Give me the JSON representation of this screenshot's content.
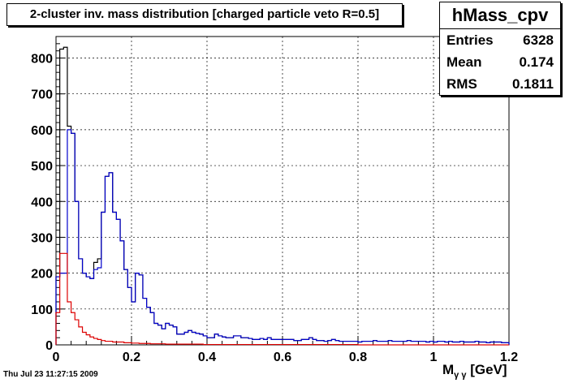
{
  "chart_data": {
    "type": "histogram",
    "title": "2-cluster inv. mass distribution [charged particle veto R=0.5]",
    "xlabel_main": "M",
    "xlabel_sub": "γ γ",
    "xlabel_unit": "[GeV]",
    "xlim": [
      0,
      1.2
    ],
    "ylim": [
      0,
      860
    ],
    "xticks": [
      0,
      0.2,
      0.4,
      0.6,
      0.8,
      1,
      1.2
    ],
    "yticks": [
      0,
      100,
      200,
      300,
      400,
      500,
      600,
      700,
      800
    ],
    "grid": true,
    "bin_width": 0.01,
    "stats": {
      "name": "hMass_cpv",
      "entries_label": "Entries",
      "entries": "6328",
      "mean_label": "Mean",
      "mean": "0.174",
      "rms_label": "RMS",
      "rms": "0.1811"
    },
    "series": [
      {
        "color": "#000000",
        "values": [
          190,
          825,
          830,
          610,
          590,
          400,
          240,
          200,
          190,
          185,
          230,
          240,
          370,
          470,
          480,
          370,
          350,
          290,
          210,
          160,
          120,
          200,
          195,
          130,
          105,
          90,
          60,
          55,
          45,
          60,
          55,
          50,
          30,
          30,
          35,
          40,
          35,
          32,
          30,
          25,
          20,
          20,
          30,
          25,
          22,
          20,
          20,
          25,
          25,
          20,
          20,
          18,
          15,
          15,
          18,
          15,
          20,
          15,
          15,
          15,
          15,
          15,
          15,
          12,
          12,
          15,
          15,
          20,
          15,
          12,
          12,
          10,
          12,
          15,
          12,
          10,
          10,
          10,
          10,
          10,
          8,
          10,
          10,
          10,
          12,
          10,
          10,
          10,
          12,
          10,
          10,
          10,
          10,
          12,
          10,
          10,
          10,
          10,
          8,
          10,
          8,
          10,
          10,
          8,
          10,
          8,
          8,
          10,
          8,
          8,
          8,
          10,
          8,
          8,
          6,
          8,
          8,
          8,
          6,
          6
        ]
      },
      {
        "color": "#0000cc",
        "values": [
          190,
          200,
          200,
          600,
          590,
          400,
          240,
          200,
          190,
          185,
          210,
          215,
          370,
          470,
          480,
          370,
          350,
          290,
          210,
          160,
          120,
          200,
          195,
          130,
          105,
          90,
          60,
          55,
          45,
          60,
          55,
          50,
          30,
          30,
          35,
          40,
          35,
          32,
          30,
          25,
          20,
          20,
          30,
          25,
          22,
          20,
          20,
          25,
          25,
          20,
          20,
          18,
          15,
          15,
          18,
          15,
          20,
          15,
          15,
          15,
          15,
          15,
          15,
          12,
          12,
          15,
          15,
          20,
          15,
          12,
          12,
          10,
          12,
          15,
          12,
          10,
          10,
          10,
          10,
          10,
          8,
          10,
          10,
          10,
          12,
          10,
          10,
          10,
          12,
          10,
          10,
          10,
          10,
          12,
          10,
          10,
          10,
          10,
          8,
          10,
          8,
          10,
          10,
          8,
          10,
          8,
          8,
          10,
          8,
          8,
          8,
          10,
          8,
          8,
          6,
          8,
          8,
          8,
          6,
          6
        ]
      },
      {
        "color": "#dd0000",
        "values": [
          90,
          255,
          255,
          120,
          90,
          70,
          50,
          35,
          28,
          22,
          18,
          15,
          12,
          10,
          10,
          8,
          8,
          8,
          6,
          6,
          5,
          5,
          4,
          4,
          4,
          3,
          3,
          3,
          3,
          2,
          2,
          2,
          2,
          2,
          2,
          2,
          2,
          2,
          2,
          1,
          1,
          1,
          1,
          1,
          1,
          1,
          1,
          1,
          1,
          1,
          1,
          1,
          1,
          1,
          1,
          1,
          1,
          1,
          1,
          1,
          1,
          1,
          1,
          1,
          1,
          1,
          1,
          1,
          1,
          1,
          1,
          1,
          1,
          1,
          1,
          1,
          1,
          1,
          1,
          1,
          0,
          0,
          0,
          0,
          0,
          0,
          0,
          0,
          0,
          0,
          0,
          0,
          0,
          0,
          0,
          0,
          0,
          0,
          0,
          0,
          0,
          0,
          0,
          0,
          0,
          0,
          0,
          0,
          0,
          0,
          0,
          0,
          0,
          0,
          0,
          0,
          0,
          0,
          0,
          0
        ]
      }
    ],
    "timestamp": "Thu Jul 23 11:27:15 2009"
  }
}
